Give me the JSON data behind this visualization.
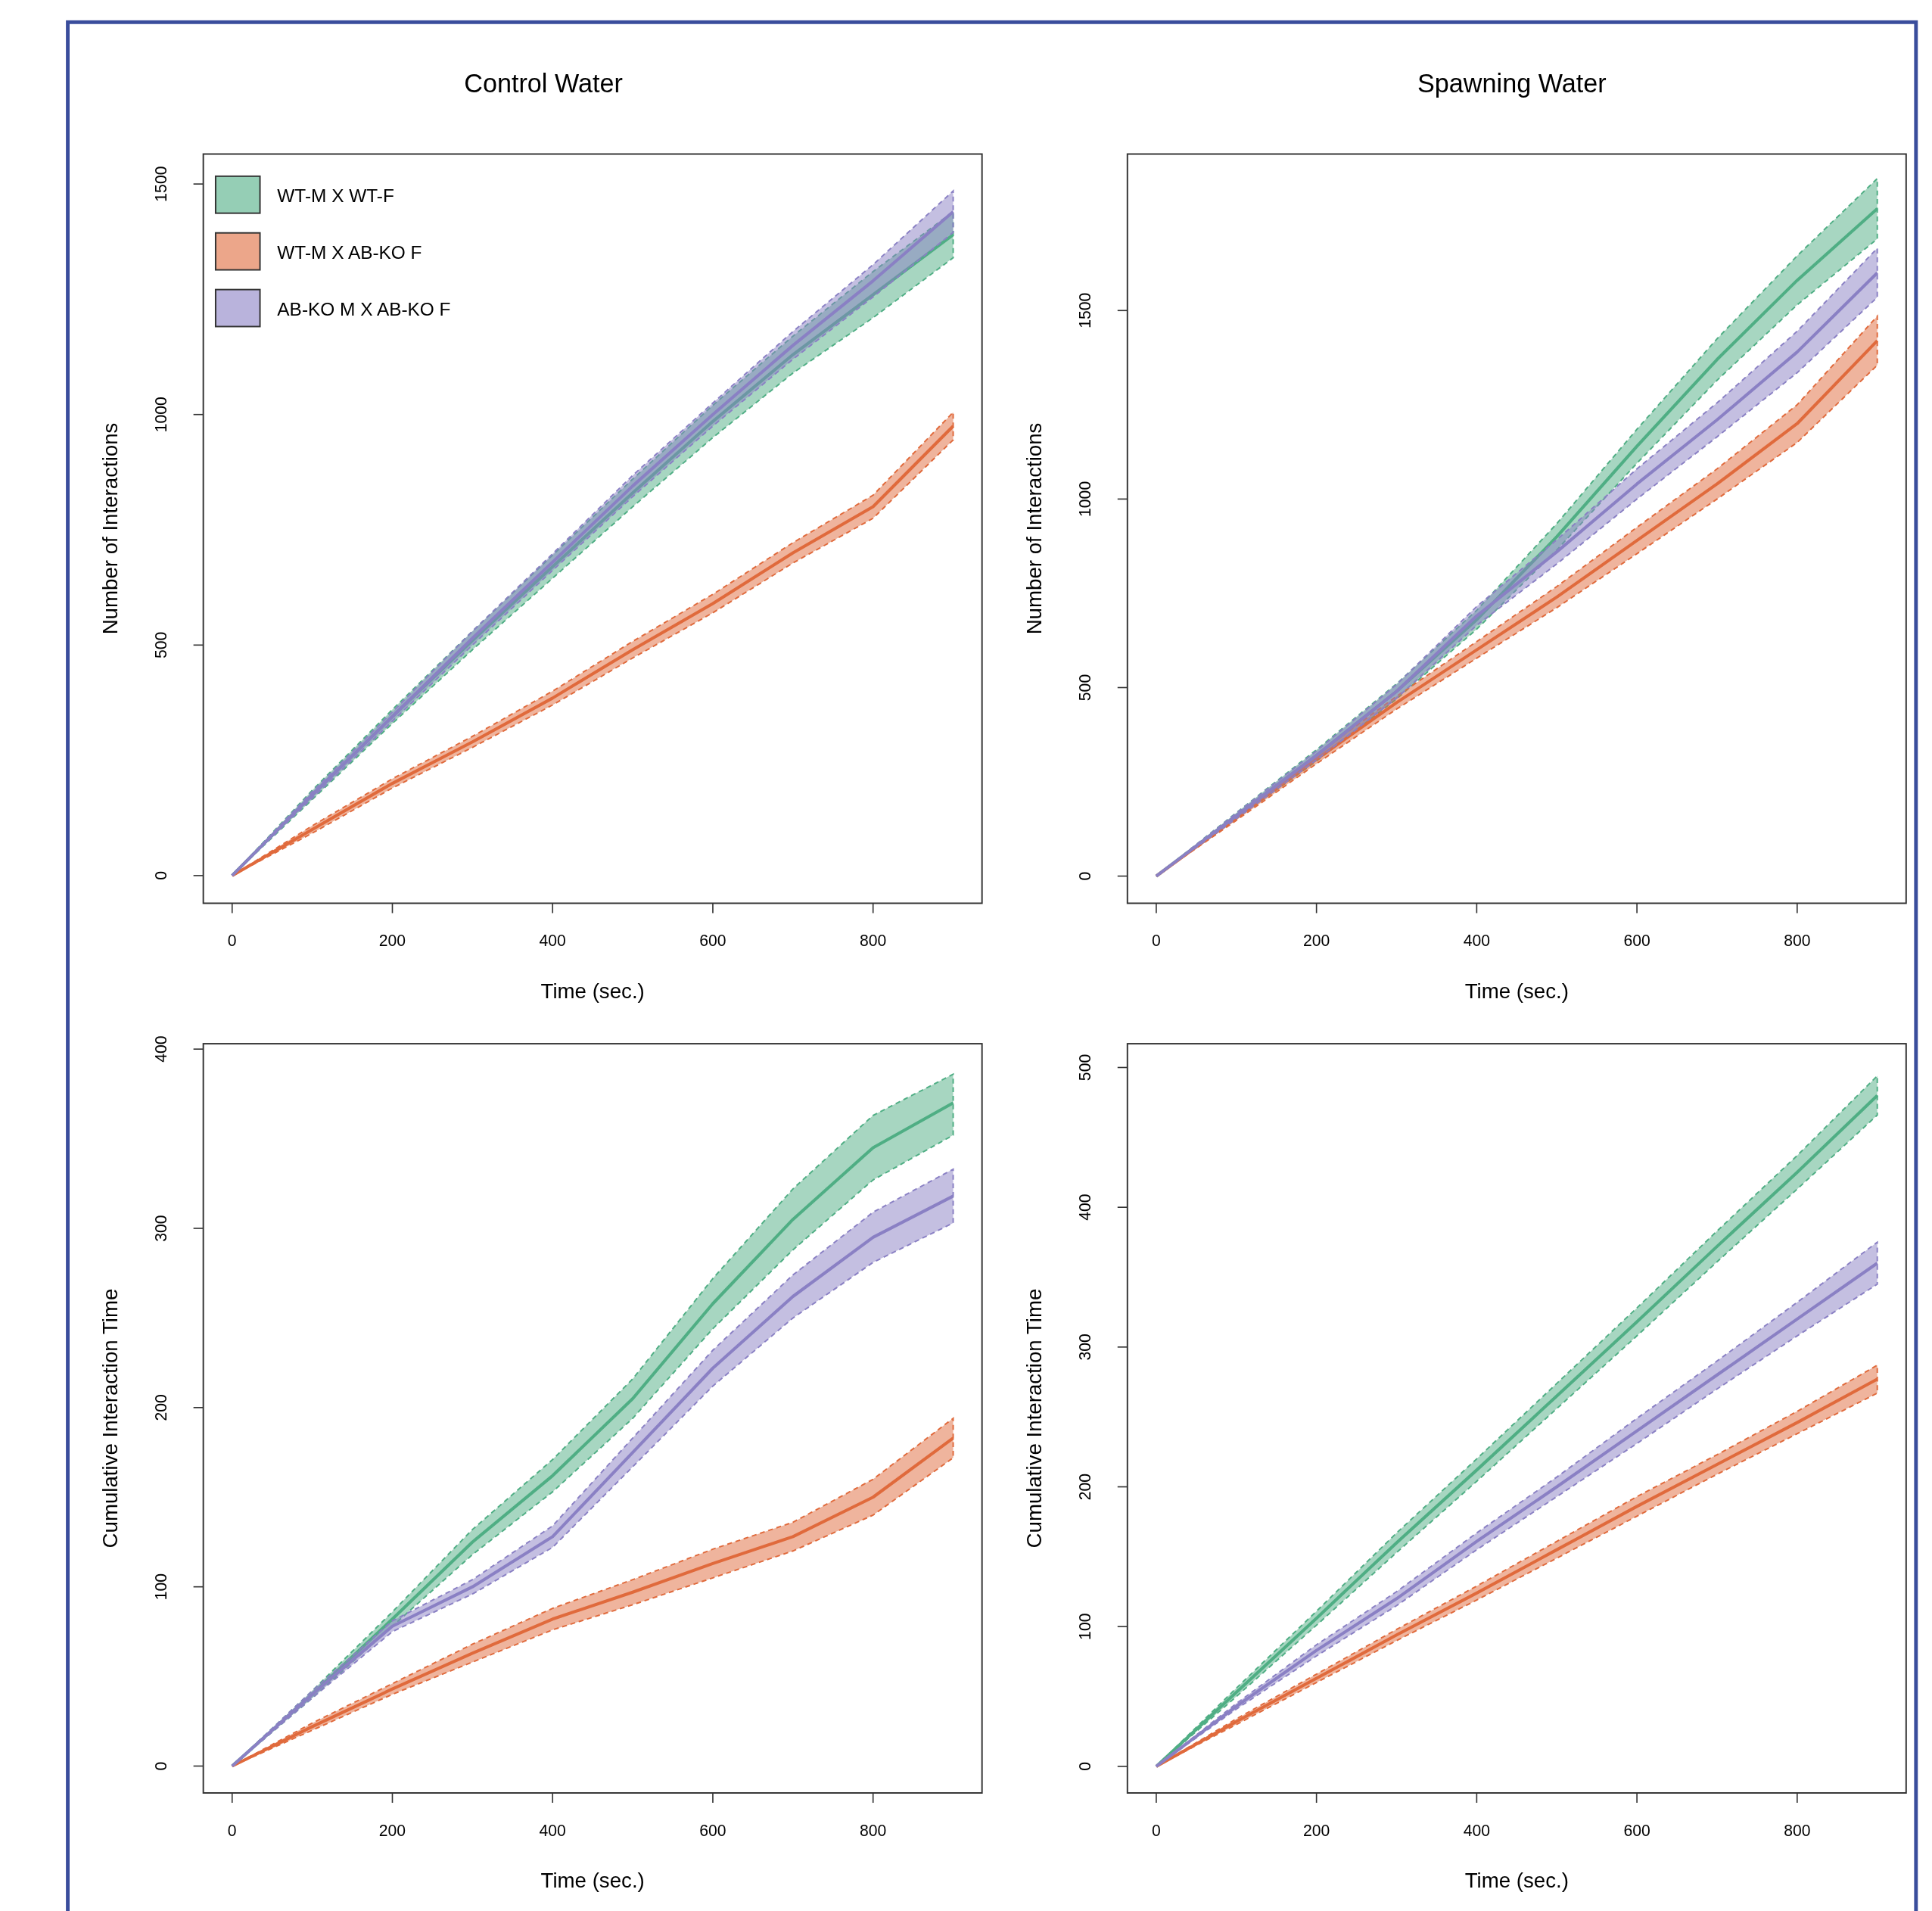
{
  "chart_data": [
    {
      "type": "line",
      "title": "Control Water",
      "xlabel": "Time (sec.)",
      "ylabel": "Number of Interactions",
      "xlim": [
        -36,
        936
      ],
      "ylim": [
        -60,
        1565
      ],
      "xticks": [
        0,
        200,
        400,
        600,
        800
      ],
      "yticks": [
        0,
        500,
        1000,
        1500
      ],
      "legend": "top left",
      "line_style": "solid",
      "x": [
        0,
        100,
        200,
        300,
        400,
        500,
        600,
        700,
        800,
        900
      ],
      "series": [
        {
          "name": "WT-M X WT-F",
          "color": "#4fae84",
          "values": [
            0,
            175,
            345,
            510,
            670,
            830,
            985,
            1130,
            1260,
            1390
          ],
          "lower": [
            0,
            165,
            330,
            490,
            645,
            800,
            950,
            1090,
            1210,
            1340
          ],
          "upper": [
            0,
            185,
            360,
            530,
            695,
            860,
            1020,
            1170,
            1310,
            1440
          ]
        },
        {
          "name": "WT-M X AB-KO F",
          "color": "#e06a3c",
          "values": [
            0,
            100,
            200,
            290,
            385,
            490,
            590,
            700,
            800,
            975
          ],
          "lower": [
            0,
            92,
            190,
            278,
            370,
            472,
            570,
            678,
            775,
            945
          ],
          "upper": [
            0,
            108,
            210,
            302,
            400,
            508,
            610,
            722,
            825,
            1005
          ]
        },
        {
          "name": "AB-KO M X AB-KO F",
          "color": "#8a80c4",
          "values": [
            0,
            175,
            345,
            515,
            680,
            845,
            1000,
            1150,
            1290,
            1440
          ],
          "lower": [
            0,
            168,
            335,
            500,
            662,
            822,
            975,
            1120,
            1255,
            1395
          ],
          "upper": [
            0,
            182,
            355,
            530,
            698,
            868,
            1025,
            1180,
            1325,
            1485
          ]
        }
      ]
    },
    {
      "type": "line",
      "title": "Spawning Water",
      "xlabel": "Time (sec.)",
      "ylabel": "Number of Interactions",
      "xlim": [
        -36,
        936
      ],
      "ylim": [
        -72,
        1915
      ],
      "xticks": [
        0,
        200,
        400,
        600,
        800
      ],
      "yticks": [
        0,
        500,
        1000,
        1500
      ],
      "line_style": "solid",
      "x": [
        0,
        100,
        200,
        300,
        400,
        500,
        600,
        700,
        800,
        900
      ],
      "series": [
        {
          "color": "#4fae84",
          "values": [
            0,
            160,
            320,
            490,
            680,
            900,
            1140,
            1370,
            1580,
            1770
          ],
          "lower": [
            0,
            152,
            305,
            470,
            655,
            865,
            1095,
            1315,
            1515,
            1690
          ],
          "upper": [
            0,
            168,
            335,
            510,
            705,
            935,
            1185,
            1425,
            1645,
            1850
          ]
        },
        {
          "color": "#e06a3c",
          "values": [
            0,
            155,
            310,
            460,
            600,
            740,
            890,
            1040,
            1200,
            1420
          ],
          "lower": [
            0,
            148,
            298,
            443,
            578,
            712,
            855,
            1000,
            1150,
            1355
          ],
          "upper": [
            0,
            162,
            322,
            477,
            622,
            768,
            925,
            1080,
            1250,
            1485
          ]
        },
        {
          "color": "#8a80c4",
          "values": [
            0,
            160,
            320,
            490,
            690,
            860,
            1040,
            1210,
            1390,
            1600
          ],
          "lower": [
            0,
            153,
            308,
            472,
            665,
            828,
            1000,
            1165,
            1335,
            1535
          ],
          "upper": [
            0,
            167,
            332,
            508,
            715,
            892,
            1080,
            1255,
            1445,
            1665
          ]
        }
      ]
    },
    {
      "type": "line",
      "xlabel": "Time (sec.)",
      "ylabel": "Cumulative Interaction Time",
      "xlim": [
        -36,
        936
      ],
      "ylim": [
        -15,
        403
      ],
      "xticks": [
        0,
        200,
        400,
        600,
        800
      ],
      "yticks": [
        0,
        100,
        200,
        300,
        400
      ],
      "line_style": "solid",
      "x": [
        0,
        100,
        200,
        300,
        400,
        500,
        600,
        700,
        800,
        900
      ],
      "series": [
        {
          "color": "#4fae84",
          "values": [
            0,
            40,
            82,
            125,
            162,
            205,
            258,
            305,
            345,
            370
          ],
          "lower": [
            0,
            38,
            78,
            118,
            153,
            194,
            244,
            288,
            327,
            352
          ],
          "upper": [
            0,
            42,
            86,
            132,
            171,
            216,
            272,
            322,
            363,
            386
          ]
        },
        {
          "color": "#e06a3c",
          "values": [
            0,
            22,
            43,
            63,
            82,
            97,
            113,
            128,
            150,
            183
          ],
          "lower": [
            0,
            20,
            40,
            58,
            76,
            90,
            105,
            120,
            140,
            172
          ],
          "upper": [
            0,
            24,
            46,
            68,
            88,
            104,
            121,
            136,
            160,
            194
          ]
        },
        {
          "color": "#8a80c4",
          "values": [
            0,
            40,
            78,
            100,
            128,
            175,
            222,
            262,
            295,
            318
          ],
          "lower": [
            0,
            38,
            75,
            96,
            122,
            167,
            212,
            250,
            281,
            303
          ],
          "upper": [
            0,
            42,
            81,
            104,
            134,
            183,
            232,
            274,
            309,
            333
          ]
        }
      ]
    },
    {
      "type": "line",
      "xlabel": "Time (sec.)",
      "ylabel": "Cumulative Interaction Time",
      "xlim": [
        -36,
        936
      ],
      "ylim": [
        -19,
        517
      ],
      "xticks": [
        0,
        200,
        400,
        600,
        800
      ],
      "yticks": [
        0,
        100,
        200,
        300,
        400,
        500
      ],
      "line_style": "solid",
      "x": [
        0,
        100,
        200,
        300,
        400,
        500,
        600,
        700,
        800,
        900
      ],
      "series": [
        {
          "color": "#4fae84",
          "values": [
            0,
            53,
            106,
            160,
            212,
            265,
            318,
            372,
            425,
            480
          ],
          "lower": [
            0,
            50,
            101,
            153,
            204,
            256,
            308,
            361,
            413,
            466
          ],
          "upper": [
            0,
            56,
            111,
            167,
            220,
            274,
            328,
            383,
            437,
            494
          ]
        },
        {
          "color": "#e06a3c",
          "values": [
            0,
            32,
            63,
            94,
            124,
            155,
            186,
            216,
            246,
            277
          ],
          "lower": [
            0,
            30,
            60,
            90,
            119,
            149,
            179,
            209,
            238,
            267
          ],
          "upper": [
            0,
            34,
            66,
            98,
            129,
            161,
            193,
            223,
            254,
            287
          ]
        },
        {
          "color": "#8a80c4",
          "values": [
            0,
            43,
            83,
            120,
            161,
            200,
            240,
            280,
            320,
            360
          ],
          "lower": [
            0,
            41,
            79,
            115,
            155,
            193,
            231,
            270,
            308,
            345
          ],
          "upper": [
            0,
            45,
            87,
            125,
            167,
            207,
            249,
            290,
            332,
            375
          ]
        }
      ]
    }
  ]
}
